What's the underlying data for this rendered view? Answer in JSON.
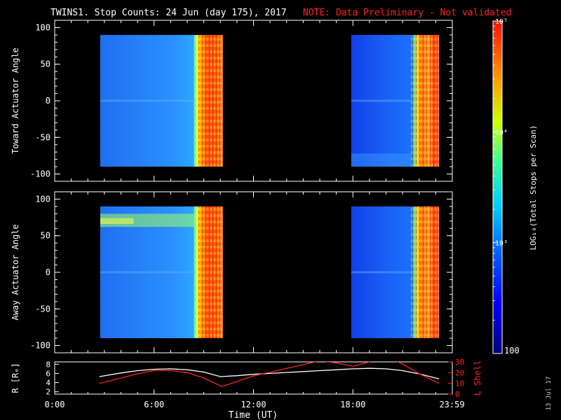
{
  "title": {
    "main": "TWINS1. Stop Counts: 24 Jun (day 175), 2017",
    "note": "NOTE: Data Preliminary - Not validated",
    "note_color": "#ff2020"
  },
  "footer_date": "13 Jul 17",
  "chart_data": [
    {
      "type": "heatmap",
      "name": "toward",
      "ylabel": "Toward Actuator Angle",
      "ylim": [
        -110,
        110
      ],
      "yticks": [
        "100",
        "50",
        "0",
        "-50",
        "-100"
      ],
      "ytick_values": [
        100,
        50,
        0,
        -50,
        -100
      ],
      "xlim_hours": [
        0,
        24
      ],
      "blocks": [
        {
          "start_hour": 2.75,
          "end_hour": 10.15,
          "ymin": -90,
          "ymax": 90,
          "transition_hour": 8.5
        },
        {
          "start_hour": 17.9,
          "end_hour": 23.2,
          "ymin": -90,
          "ymax": 90,
          "transition_hour": 21.5
        }
      ]
    },
    {
      "type": "heatmap",
      "name": "away",
      "ylabel": "Away Actuator Angle",
      "ylim": [
        -110,
        110
      ],
      "yticks": [
        "100",
        "50",
        "0",
        "-50",
        "-100"
      ],
      "ytick_values": [
        100,
        50,
        0,
        -50,
        -100
      ],
      "xlim_hours": [
        0,
        24
      ],
      "blocks": [
        {
          "start_hour": 2.75,
          "end_hour": 10.15,
          "ymin": -90,
          "ymax": 90,
          "transition_hour": 8.5
        },
        {
          "start_hour": 17.9,
          "end_hour": 23.2,
          "ymin": -90,
          "ymax": 90,
          "transition_hour": 21.5
        }
      ]
    },
    {
      "type": "line",
      "name": "orbit",
      "ylabel_left": "R [Rₑ]",
      "ylabel_right": "L Shell",
      "left_ylim": [
        1.5,
        8.5
      ],
      "left_yticks": [
        "8",
        "6",
        "4",
        "2"
      ],
      "left_ytick_values": [
        8,
        6,
        4,
        2
      ],
      "right_ylim": [
        0,
        30
      ],
      "right_yticks": [
        "30",
        "20",
        "10",
        "0"
      ],
      "right_ytick_values": [
        30,
        20,
        10,
        0
      ],
      "xticks": [
        "0:00",
        "6:00",
        "12:00",
        "18:00",
        "23:59"
      ],
      "xtick_hours": [
        0,
        6,
        12,
        18,
        23.98
      ],
      "xlabel": "Time (UT)",
      "series": [
        {
          "axis": "left",
          "color": "#ffffff",
          "x": [
            2.7,
            4,
            5,
            6,
            7,
            8,
            9,
            10,
            11,
            12,
            13,
            14,
            15,
            16,
            17,
            18,
            19,
            20,
            21,
            22,
            23.2
          ],
          "y": [
            5.3,
            6.1,
            6.6,
            6.9,
            7.0,
            6.8,
            6.3,
            5.3,
            5.5,
            5.8,
            6.0,
            6.2,
            6.4,
            6.6,
            6.8,
            7.0,
            7.1,
            7.0,
            6.6,
            5.9,
            4.8
          ]
        },
        {
          "axis": "right",
          "color": "#ff2020",
          "x": [
            2.7,
            4,
            5,
            6,
            7,
            8,
            9,
            10.1,
            12,
            14,
            16,
            17,
            18,
            19,
            20,
            21,
            22,
            23.2
          ],
          "y": [
            10,
            15,
            19,
            22,
            22,
            20,
            15,
            7,
            17,
            24,
            31,
            29,
            26,
            30,
            35,
            28,
            19,
            10
          ]
        }
      ]
    }
  ],
  "colorbar": {
    "label": "LOG₁₀(Total Stops per Scan)",
    "ticks": [
      "10⁵",
      "10⁴",
      "10³",
      "100"
    ],
    "tick_values": [
      5,
      4,
      3,
      2
    ],
    "range": [
      2,
      5
    ]
  }
}
